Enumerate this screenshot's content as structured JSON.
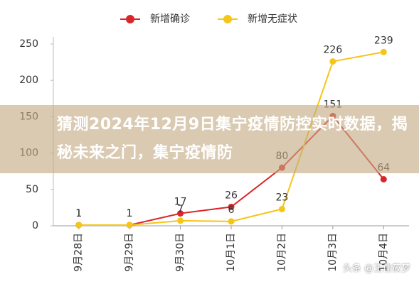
{
  "chart_data": {
    "type": "line",
    "categories": [
      "9月28日",
      "9月29日",
      "9月30日",
      "10月1日",
      "10月2日",
      "10月3日",
      "10月4日"
    ],
    "series": [
      {
        "name": "新增确诊",
        "color": "#d9262b",
        "values": [
          1,
          1,
          17,
          26,
          80,
          151,
          64
        ]
      },
      {
        "name": "新增无症状",
        "color": "#f5c518",
        "values": [
          1,
          1,
          7,
          6,
          23,
          226,
          239
        ]
      }
    ],
    "ylim": [
      0,
      250
    ],
    "yticks": [
      0,
      50,
      100,
      150,
      200,
      250
    ]
  },
  "banner": "猜测2024年12月9日集宁疫情防控实时数据，揭秘未来之门，集宁疫情防",
  "watermark": "头条 @王佳筱梦"
}
